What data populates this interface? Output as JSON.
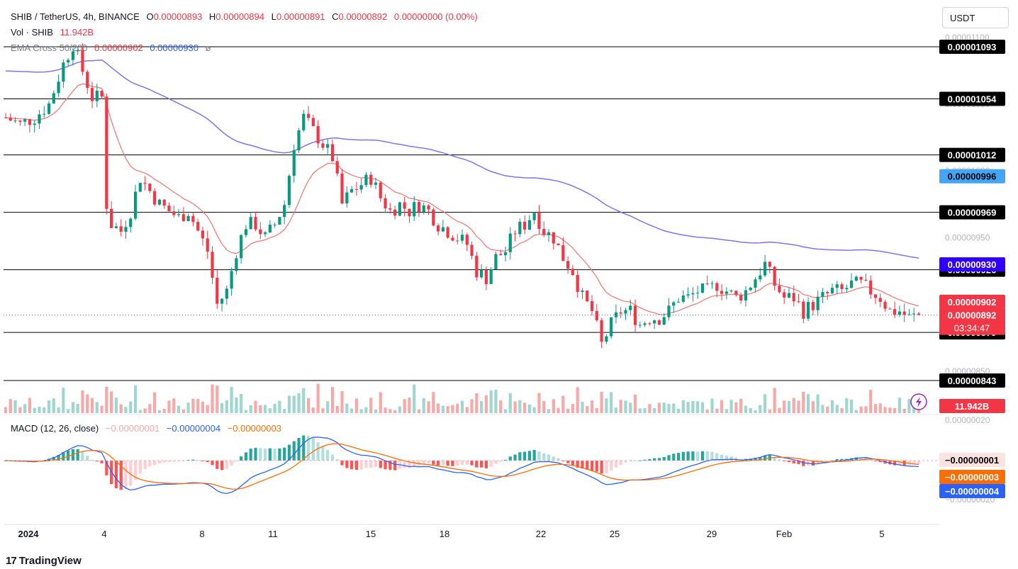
{
  "header": {
    "symbol": "SHIB / TetherUS, 4h, BINANCE",
    "ohlc": {
      "o_label": "O",
      "o": "0.00000893",
      "h_label": "H",
      "h": "0.00000894",
      "l_label": "L",
      "l": "0.00000891",
      "c_label": "C",
      "c": "0.00000892",
      "change": "0.00000000 (0.00%)"
    },
    "vol_label": "Vol · SHIB",
    "vol_value": "11.942B",
    "ema_label": "EMA Cross 50/200",
    "ema50": "0.00000902",
    "ema200": "0.00000930"
  },
  "macd_legend": {
    "label": "MACD (12, 26, close)",
    "hist": "−0.00000001",
    "macd": "−0.00000004",
    "signal": "−0.00000003"
  },
  "currency": "USDT",
  "brand": "TradingView",
  "colors": {
    "up": "#089981",
    "down": "#f23645",
    "ema50": "#f23645",
    "ema200": "#2962ff",
    "macd": "#2962ff",
    "signal": "#ff6d00",
    "level": "#000000"
  },
  "chart_data": {
    "type": "candlestick",
    "symbol": "SHIB/USDT",
    "timeframe": "4h",
    "x_ticks": [
      "2024",
      "4",
      "8",
      "11",
      "15",
      "18",
      "22",
      "25",
      "29",
      "Feb",
      "5"
    ],
    "y_ticks": [
      "0.00001100",
      "0.00001050",
      "0.00001000",
      "0.00000950",
      "0.00000900",
      "0.00000850"
    ],
    "y_range": [
      8.4e-06,
      1.11e-05
    ],
    "horizontal_levels": [
      "0.00001093",
      "0.00001054",
      "0.00001012",
      "0.00000969",
      "0.00000926",
      "0.00000879",
      "0.00000843"
    ],
    "price_labels": {
      "ema200": "0.00000996",
      "ema200_right": "0.00000930",
      "ema50": "0.00000902",
      "last": "0.00000892",
      "countdown": "03:34:47",
      "volume": "11.942B",
      "macd_hist": "−0.00000001",
      "macd_signal": "−0.00000003",
      "macd_line": "−0.00000004",
      "macd_axis_top": "0.00000020",
      "macd_axis_bottom": "−0.00000020"
    },
    "close_path": [
      [
        0,
        10.4
      ],
      [
        3,
        10.35
      ],
      [
        6,
        10.4
      ],
      [
        9,
        10.5
      ],
      [
        12,
        10.8
      ],
      [
        14,
        10.95
      ],
      [
        16,
        10.75
      ],
      [
        18,
        10.55
      ],
      [
        20,
        10.55
      ],
      [
        21,
        9.75
      ],
      [
        22,
        9.6
      ],
      [
        24,
        9.55
      ],
      [
        26,
        9.7
      ],
      [
        28,
        9.95
      ],
      [
        30,
        9.85
      ],
      [
        32,
        9.75
      ],
      [
        34,
        9.7
      ],
      [
        36,
        9.65
      ],
      [
        38,
        9.7
      ],
      [
        40,
        9.55
      ],
      [
        42,
        9.4
      ],
      [
        44,
        9.0
      ],
      [
        46,
        9.1
      ],
      [
        48,
        9.4
      ],
      [
        50,
        9.6
      ],
      [
        52,
        9.6
      ],
      [
        54,
        9.5
      ],
      [
        56,
        9.6
      ],
      [
        58,
        9.75
      ],
      [
        60,
        10.2
      ],
      [
        62,
        10.4
      ],
      [
        64,
        10.3
      ],
      [
        66,
        10.2
      ],
      [
        68,
        10.1
      ],
      [
        70,
        9.75
      ],
      [
        72,
        9.85
      ],
      [
        74,
        9.9
      ],
      [
        76,
        9.95
      ],
      [
        78,
        9.8
      ],
      [
        80,
        9.7
      ],
      [
        82,
        9.75
      ],
      [
        84,
        9.7
      ],
      [
        86,
        9.75
      ],
      [
        88,
        9.7
      ],
      [
        90,
        9.6
      ],
      [
        92,
        9.55
      ],
      [
        94,
        9.5
      ],
      [
        96,
        9.45
      ],
      [
        98,
        9.25
      ],
      [
        100,
        9.2
      ],
      [
        102,
        9.35
      ],
      [
        104,
        9.4
      ],
      [
        106,
        9.55
      ],
      [
        108,
        9.6
      ],
      [
        110,
        9.7
      ],
      [
        112,
        9.55
      ],
      [
        114,
        9.5
      ],
      [
        116,
        9.35
      ],
      [
        118,
        9.25
      ],
      [
        120,
        9.05
      ],
      [
        122,
        8.95
      ],
      [
        124,
        8.7
      ],
      [
        126,
        8.85
      ],
      [
        128,
        8.95
      ],
      [
        130,
        8.95
      ],
      [
        132,
        8.85
      ],
      [
        134,
        8.9
      ],
      [
        136,
        8.9
      ],
      [
        138,
        8.95
      ],
      [
        140,
        9.05
      ],
      [
        142,
        9.05
      ],
      [
        144,
        9.1
      ],
      [
        146,
        9.1
      ],
      [
        148,
        9.15
      ],
      [
        150,
        9.1
      ],
      [
        152,
        9.05
      ],
      [
        154,
        9.1
      ],
      [
        156,
        9.2
      ],
      [
        158,
        9.3
      ],
      [
        160,
        9.15
      ],
      [
        162,
        9.05
      ],
      [
        164,
        9.05
      ],
      [
        166,
        8.95
      ],
      [
        168,
        9.0
      ],
      [
        170,
        9.05
      ],
      [
        172,
        9.1
      ],
      [
        174,
        9.1
      ],
      [
        176,
        9.15
      ],
      [
        178,
        9.15
      ],
      [
        180,
        9.1
      ],
      [
        182,
        9.05
      ],
      [
        184,
        8.95
      ],
      [
        186,
        8.95
      ],
      [
        188,
        8.9
      ],
      [
        190,
        8.92
      ]
    ]
  }
}
